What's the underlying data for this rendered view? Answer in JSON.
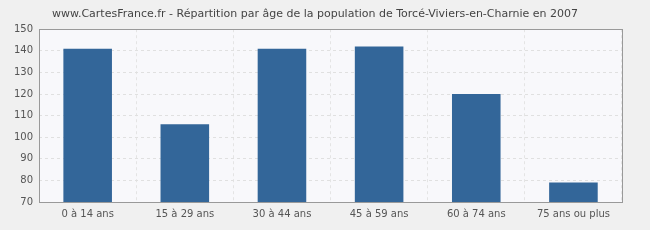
{
  "chart_data": {
    "type": "bar",
    "title": "www.CartesFrance.fr - Répartition par âge de la population de Torcé-Viviers-en-Charnie en 2007",
    "categories": [
      "0 à 14 ans",
      "15 à 29 ans",
      "30 à 44 ans",
      "45 à 59 ans",
      "60 à 74 ans",
      "75 ans ou plus"
    ],
    "values": [
      141,
      106,
      141,
      142,
      120,
      79
    ],
    "color": "#336699",
    "ylim": [
      70,
      150
    ],
    "yticks": [
      70,
      80,
      90,
      100,
      110,
      120,
      130,
      140,
      150
    ],
    "grid": true
  }
}
